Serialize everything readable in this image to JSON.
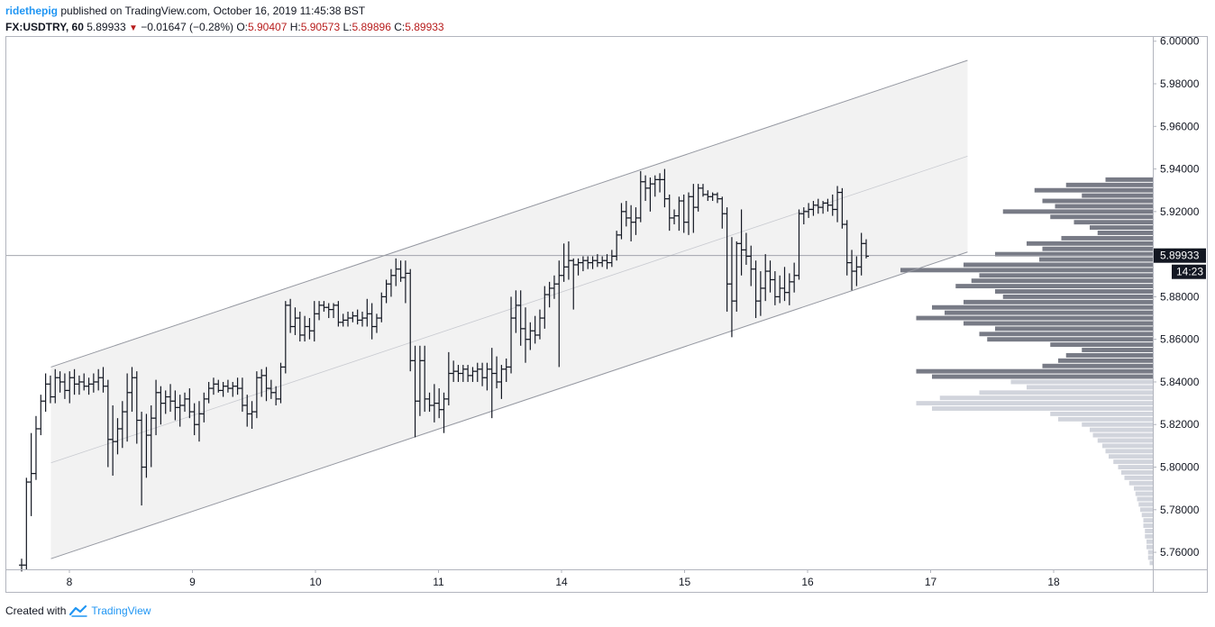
{
  "header": {
    "user": "ridethepig",
    "published": "published on TradingView.com, October 16, 2019 11:45:38 BST",
    "symbol": "FX:USDTRY, 60",
    "last": "5.89933",
    "change": "−0.01647 (−0.28%)",
    "o_label": "O:",
    "o_value": "5.90407",
    "h_label": "H:",
    "h_value": "5.90573",
    "l_label": "L:",
    "l_value": "5.89896",
    "c_label": "C:",
    "c_value": "5.89933"
  },
  "footer": {
    "created_with": "Created with",
    "brand": "TradingView"
  },
  "colors": {
    "bar": "#131722",
    "channel": "#9598a1",
    "fill": "#f2f2f2",
    "vp_dark": "#787b86",
    "vp_light": "#d1d4dc",
    "accent": "#2196f3",
    "red": "#b71c1c"
  },
  "chart_data": {
    "type": "ohlc",
    "title": "FX:USDTRY, 60",
    "ylim": [
      5.752,
      6.002
    ],
    "y_ticks": [
      "6.00000",
      "5.98000",
      "5.96000",
      "5.94000",
      "5.92000",
      "5.90000",
      "5.88000",
      "5.86000",
      "5.84000",
      "5.82000",
      "5.80000",
      "5.78000",
      "5.76000"
    ],
    "x_ticks": [
      "8",
      "9",
      "10",
      "11",
      "14",
      "15",
      "16",
      "17",
      "18"
    ],
    "last_price_label": "5.89933",
    "countdown_label": "14:23",
    "last_price": 5.89933,
    "channel": {
      "upper": [
        [
          -0.15,
          5.847
        ],
        [
          7.3,
          5.991
        ]
      ],
      "lower": [
        [
          -0.15,
          5.757
        ],
        [
          7.3,
          5.901
        ]
      ],
      "mid": [
        [
          -0.15,
          5.802
        ],
        [
          7.3,
          5.946
        ]
      ]
    },
    "volume_profile": {
      "levels": [
        5.935,
        5.9325,
        5.93,
        5.9275,
        5.925,
        5.9225,
        5.92,
        5.9175,
        5.915,
        5.9125,
        5.91,
        5.9075,
        5.905,
        5.9025,
        5.9,
        5.8975,
        5.895,
        5.8925,
        5.89,
        5.8875,
        5.885,
        5.8825,
        5.88,
        5.8775,
        5.875,
        5.8725,
        5.87,
        5.8675,
        5.865,
        5.8625,
        5.86,
        5.8575,
        5.855,
        5.8525,
        5.85,
        5.8475,
        5.845,
        5.8425,
        5.84,
        5.8375,
        5.835,
        5.8325,
        5.83,
        5.8275,
        5.825,
        5.8225,
        5.82,
        5.8175,
        5.815,
        5.8125,
        5.81,
        5.8075,
        5.805,
        5.8025,
        5.8,
        5.7975,
        5.795,
        5.7925,
        5.79,
        5.7875,
        5.785,
        5.7825,
        5.78,
        5.7775,
        5.775,
        5.7725,
        5.77,
        5.7675,
        5.765,
        5.7625,
        5.76,
        5.7575,
        5.755
      ],
      "volumes": [
        30,
        55,
        75,
        45,
        70,
        62,
        95,
        65,
        50,
        40,
        35,
        58,
        80,
        70,
        100,
        72,
        120,
        160,
        110,
        115,
        125,
        100,
        95,
        120,
        140,
        132,
        150,
        120,
        100,
        110,
        105,
        65,
        45,
        55,
        60,
        70,
        150,
        140,
        90,
        80,
        110,
        135,
        150,
        140,
        65,
        60,
        45,
        40,
        38,
        35,
        32,
        30,
        28,
        25,
        22,
        20,
        18,
        15,
        12,
        11,
        10,
        9,
        8,
        7,
        6,
        6,
        5,
        5,
        4,
        4,
        3,
        3,
        2
      ],
      "dark_above": 5.841
    },
    "bars": [
      [
        5.754,
        5.757,
        5.751,
        5.754
      ],
      [
        5.754,
        5.795,
        5.752,
        5.793
      ],
      [
        5.793,
        5.816,
        5.777,
        5.797
      ],
      [
        5.797,
        5.824,
        5.794,
        5.818
      ],
      [
        5.818,
        5.834,
        5.815,
        5.831
      ],
      [
        5.831,
        5.844,
        5.826,
        5.839
      ],
      [
        5.839,
        5.843,
        5.83,
        5.833
      ],
      [
        5.833,
        5.846,
        5.83,
        5.842
      ],
      [
        5.842,
        5.845,
        5.835,
        5.84
      ],
      [
        5.84,
        5.844,
        5.832,
        5.836
      ],
      [
        5.836,
        5.845,
        5.83,
        5.842
      ],
      [
        5.842,
        5.846,
        5.834,
        5.839
      ],
      [
        5.839,
        5.843,
        5.834,
        5.84
      ],
      [
        5.84,
        5.844,
        5.836,
        5.838
      ],
      [
        5.838,
        5.842,
        5.834,
        5.839
      ],
      [
        5.839,
        5.844,
        5.835,
        5.84
      ],
      [
        5.84,
        5.846,
        5.836,
        5.842
      ],
      [
        5.842,
        5.847,
        5.835,
        5.838
      ],
      [
        5.838,
        5.841,
        5.8,
        5.813
      ],
      [
        5.813,
        5.829,
        5.796,
        5.812
      ],
      [
        5.812,
        5.823,
        5.806,
        5.818
      ],
      [
        5.818,
        5.831,
        5.809,
        5.826
      ],
      [
        5.826,
        5.844,
        5.812,
        5.835
      ],
      [
        5.835,
        5.847,
        5.826,
        5.842
      ],
      [
        5.842,
        5.845,
        5.811,
        5.822
      ],
      [
        5.822,
        5.826,
        5.782,
        5.8
      ],
      [
        5.8,
        5.825,
        5.795,
        5.815
      ],
      [
        5.815,
        5.829,
        5.8,
        5.823
      ],
      [
        5.823,
        5.841,
        5.815,
        5.835
      ],
      [
        5.835,
        5.838,
        5.82,
        5.83
      ],
      [
        5.83,
        5.836,
        5.825,
        5.833
      ],
      [
        5.833,
        5.839,
        5.826,
        5.831
      ],
      [
        5.831,
        5.836,
        5.822,
        5.828
      ],
      [
        5.828,
        5.834,
        5.819,
        5.829
      ],
      [
        5.829,
        5.835,
        5.826,
        5.832
      ],
      [
        5.832,
        5.837,
        5.823,
        5.826
      ],
      [
        5.826,
        5.83,
        5.815,
        5.82
      ],
      [
        5.82,
        5.831,
        5.812,
        5.825
      ],
      [
        5.825,
        5.835,
        5.821,
        5.832
      ],
      [
        5.832,
        5.84,
        5.83,
        5.837
      ],
      [
        5.837,
        5.842,
        5.834,
        5.839
      ],
      [
        5.839,
        5.841,
        5.835,
        5.836
      ],
      [
        5.836,
        5.84,
        5.833,
        5.838
      ],
      [
        5.838,
        5.841,
        5.835,
        5.837
      ],
      [
        5.837,
        5.84,
        5.833,
        5.838
      ],
      [
        5.838,
        5.842,
        5.834,
        5.837
      ],
      [
        5.837,
        5.842,
        5.826,
        5.829
      ],
      [
        5.829,
        5.834,
        5.819,
        5.825
      ],
      [
        5.825,
        5.831,
        5.818,
        5.826
      ],
      [
        5.826,
        5.845,
        5.823,
        5.842
      ],
      [
        5.842,
        5.846,
        5.833,
        5.843
      ],
      [
        5.843,
        5.847,
        5.831,
        5.837
      ],
      [
        5.837,
        5.841,
        5.832,
        5.835
      ],
      [
        5.835,
        5.838,
        5.829,
        5.832
      ],
      [
        5.832,
        5.849,
        5.83,
        5.847
      ],
      [
        5.847,
        5.878,
        5.844,
        5.876
      ],
      [
        5.876,
        5.879,
        5.863,
        5.866
      ],
      [
        5.866,
        5.875,
        5.862,
        5.87
      ],
      [
        5.87,
        5.873,
        5.859,
        5.862
      ],
      [
        5.862,
        5.871,
        5.859,
        5.866
      ],
      [
        5.866,
        5.87,
        5.86,
        5.864
      ],
      [
        5.864,
        5.878,
        5.859,
        5.872
      ],
      [
        5.872,
        5.878,
        5.869,
        5.876
      ],
      [
        5.876,
        5.878,
        5.873,
        5.875
      ],
      [
        5.875,
        5.877,
        5.87,
        5.874
      ],
      [
        5.874,
        5.877,
        5.87,
        5.876
      ],
      [
        5.876,
        5.878,
        5.866,
        5.868
      ],
      [
        5.868,
        5.872,
        5.866,
        5.869
      ],
      [
        5.869,
        5.873,
        5.866,
        5.87
      ],
      [
        5.87,
        5.873,
        5.868,
        5.871
      ],
      [
        5.871,
        5.874,
        5.867,
        5.869
      ],
      [
        5.869,
        5.873,
        5.866,
        5.87
      ],
      [
        5.87,
        5.879,
        5.866,
        5.872
      ],
      [
        5.872,
        5.877,
        5.86,
        5.866
      ],
      [
        5.866,
        5.872,
        5.863,
        5.87
      ],
      [
        5.87,
        5.882,
        5.868,
        5.88
      ],
      [
        5.88,
        5.888,
        5.877,
        5.886
      ],
      [
        5.886,
        5.893,
        5.88,
        5.89
      ],
      [
        5.89,
        5.898,
        5.885,
        5.893
      ],
      [
        5.893,
        5.897,
        5.887,
        5.889
      ],
      [
        5.889,
        5.897,
        5.877,
        5.891
      ],
      [
        5.891,
        5.893,
        5.845,
        5.85
      ],
      [
        5.85,
        5.857,
        5.814,
        5.831
      ],
      [
        5.831,
        5.857,
        5.824,
        5.85
      ],
      [
        5.85,
        5.857,
        5.826,
        5.832
      ],
      [
        5.832,
        5.835,
        5.826,
        5.829
      ],
      [
        5.829,
        5.839,
        5.821,
        5.83
      ],
      [
        5.83,
        5.837,
        5.823,
        5.827
      ],
      [
        5.827,
        5.835,
        5.816,
        5.832
      ],
      [
        5.832,
        5.854,
        5.829,
        5.844
      ],
      [
        5.844,
        5.85,
        5.84,
        5.845
      ],
      [
        5.845,
        5.848,
        5.84,
        5.844
      ],
      [
        5.844,
        5.848,
        5.84,
        5.846
      ],
      [
        5.846,
        5.848,
        5.84,
        5.843
      ],
      [
        5.843,
        5.847,
        5.84,
        5.845
      ],
      [
        5.845,
        5.849,
        5.84,
        5.846
      ],
      [
        5.846,
        5.849,
        5.838,
        5.842
      ],
      [
        5.842,
        5.849,
        5.836,
        5.846
      ],
      [
        5.846,
        5.856,
        5.823,
        5.844
      ],
      [
        5.844,
        5.852,
        5.837,
        5.84
      ],
      [
        5.84,
        5.848,
        5.832,
        5.846
      ],
      [
        5.846,
        5.851,
        5.84,
        5.847
      ],
      [
        5.847,
        5.88,
        5.844,
        5.87
      ],
      [
        5.87,
        5.883,
        5.863,
        5.876
      ],
      [
        5.876,
        5.883,
        5.857,
        5.865
      ],
      [
        5.865,
        5.875,
        5.849,
        5.86
      ],
      [
        5.86,
        5.868,
        5.855,
        5.864
      ],
      [
        5.864,
        5.871,
        5.858,
        5.862
      ],
      [
        5.862,
        5.874,
        5.86,
        5.87
      ],
      [
        5.87,
        5.885,
        5.865,
        5.881
      ],
      [
        5.881,
        5.887,
        5.875,
        5.884
      ],
      [
        5.884,
        5.89,
        5.879,
        5.886
      ],
      [
        5.886,
        5.897,
        5.847,
        5.89
      ],
      [
        5.89,
        5.905,
        5.887,
        5.894
      ],
      [
        5.894,
        5.906,
        5.888,
        5.897
      ],
      [
        5.897,
        5.898,
        5.874,
        5.895
      ],
      [
        5.895,
        5.898,
        5.89,
        5.896
      ],
      [
        5.896,
        5.899,
        5.892,
        5.897
      ],
      [
        5.897,
        5.899,
        5.893,
        5.896
      ],
      [
        5.896,
        5.899,
        5.893,
        5.897
      ],
      [
        5.897,
        5.9,
        5.894,
        5.896
      ],
      [
        5.896,
        5.899,
        5.894,
        5.897
      ],
      [
        5.897,
        5.9,
        5.893,
        5.896
      ],
      [
        5.896,
        5.902,
        5.894,
        5.899
      ],
      [
        5.899,
        5.911,
        5.897,
        5.909
      ],
      [
        5.909,
        5.924,
        5.907,
        5.92
      ],
      [
        5.92,
        5.925,
        5.913,
        5.917
      ],
      [
        5.917,
        5.923,
        5.906,
        5.915
      ],
      [
        5.915,
        5.922,
        5.909,
        5.917
      ],
      [
        5.917,
        5.939,
        5.915,
        5.934
      ],
      [
        5.934,
        5.937,
        5.925,
        5.931
      ],
      [
        5.931,
        5.936,
        5.92,
        5.933
      ],
      [
        5.933,
        5.937,
        5.927,
        5.935
      ],
      [
        5.935,
        5.938,
        5.929,
        5.935
      ],
      [
        5.935,
        5.94,
        5.922,
        5.926
      ],
      [
        5.926,
        5.928,
        5.911,
        5.917
      ],
      [
        5.917,
        5.921,
        5.914,
        5.918
      ],
      [
        5.918,
        5.927,
        5.911,
        5.925
      ],
      [
        5.925,
        5.928,
        5.91,
        5.915
      ],
      [
        5.915,
        5.929,
        5.909,
        5.927
      ],
      [
        5.927,
        5.933,
        5.91,
        5.922
      ],
      [
        5.922,
        5.933,
        5.92,
        5.931
      ],
      [
        5.931,
        5.933,
        5.927,
        5.928
      ],
      [
        5.928,
        5.93,
        5.925,
        5.927
      ],
      [
        5.927,
        5.929,
        5.925,
        5.928
      ],
      [
        5.928,
        5.929,
        5.924,
        5.926
      ],
      [
        5.926,
        5.927,
        5.912,
        5.919
      ],
      [
        5.919,
        5.922,
        5.873,
        5.886
      ],
      [
        5.886,
        5.908,
        5.861,
        5.878
      ],
      [
        5.878,
        5.906,
        5.873,
        5.905
      ],
      [
        5.905,
        5.921,
        5.89,
        5.902
      ],
      [
        5.902,
        5.91,
        5.895,
        5.899
      ],
      [
        5.899,
        5.904,
        5.885,
        5.893
      ],
      [
        5.893,
        5.897,
        5.87,
        5.878
      ],
      [
        5.878,
        5.892,
        5.871,
        5.884
      ],
      [
        5.884,
        5.9,
        5.878,
        5.892
      ],
      [
        5.892,
        5.897,
        5.882,
        5.888
      ],
      [
        5.888,
        5.892,
        5.876,
        5.88
      ],
      [
        5.88,
        5.89,
        5.877,
        5.884
      ],
      [
        5.884,
        5.894,
        5.878,
        5.882
      ],
      [
        5.882,
        5.891,
        5.876,
        5.887
      ],
      [
        5.887,
        5.896,
        5.882,
        5.89
      ],
      [
        5.89,
        5.921,
        5.888,
        5.919
      ],
      [
        5.919,
        5.922,
        5.914,
        5.92
      ],
      [
        5.92,
        5.924,
        5.917,
        5.921
      ],
      [
        5.921,
        5.925,
        5.918,
        5.923
      ],
      [
        5.923,
        5.926,
        5.919,
        5.922
      ],
      [
        5.922,
        5.925,
        5.919,
        5.924
      ],
      [
        5.924,
        5.926,
        5.92,
        5.923
      ],
      [
        5.923,
        5.928,
        5.918,
        5.921
      ],
      [
        5.921,
        5.932,
        5.915,
        5.929
      ],
      [
        5.929,
        5.931,
        5.912,
        5.914
      ],
      [
        5.914,
        5.916,
        5.89,
        5.896
      ],
      [
        5.896,
        5.902,
        5.883,
        5.892
      ],
      [
        5.892,
        5.899,
        5.885,
        5.894
      ],
      [
        5.894,
        5.91,
        5.89,
        5.905
      ],
      [
        5.905,
        5.907,
        5.898,
        5.899
      ]
    ]
  }
}
